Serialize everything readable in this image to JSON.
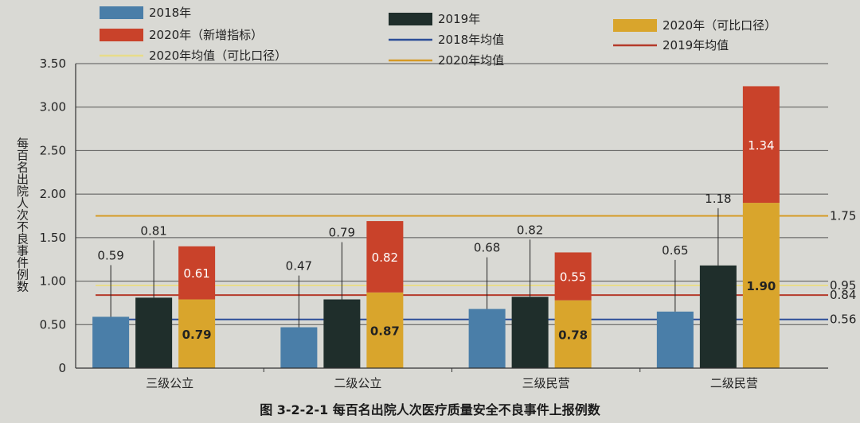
{
  "chart_data": {
    "type": "bar",
    "title": "图 3-2-2-1   每百名出院人次医疗质量安全不良事件上报例数",
    "ylabel": "每百名出院人次不良事件例数",
    "xlabel": "",
    "ylim": [
      0,
      3.5
    ],
    "yticks": [
      "0",
      "0.50",
      "1.00",
      "1.50",
      "2.00",
      "2.50",
      "3.00",
      "3.50"
    ],
    "categories": [
      "三级公立",
      "二级公立",
      "三级民营",
      "二级民营"
    ],
    "series": [
      {
        "name": "2018年",
        "color": "#4a7ea8",
        "values": [
          0.59,
          0.47,
          0.68,
          0.65
        ]
      },
      {
        "name": "2019年",
        "color": "#1f2e2b",
        "values": [
          0.81,
          0.79,
          0.82,
          1.18
        ]
      },
      {
        "name": "2020年（可比口径）",
        "color": "#d9a52c",
        "values": [
          0.79,
          0.87,
          0.78,
          1.9
        ]
      },
      {
        "name": "2020年（新增指标）",
        "color": "#c9422a",
        "values": [
          0.61,
          0.82,
          0.55,
          1.34
        ]
      }
    ],
    "reference_lines": [
      {
        "name": "2018年均值",
        "color": "#2c4e98",
        "value": 0.56,
        "label": "0.56"
      },
      {
        "name": "2019年均值",
        "color": "#b53a2a",
        "value": 0.84,
        "label": "0.84"
      },
      {
        "name": "2020年均值",
        "color": "#d59a25",
        "value": 1.75,
        "label": "1.75"
      },
      {
        "name": "2020年均值（可比口径）",
        "color": "#e8dc8a",
        "value": 0.95,
        "label": "0.95"
      }
    ],
    "legend_placement": "top",
    "grid": true
  }
}
